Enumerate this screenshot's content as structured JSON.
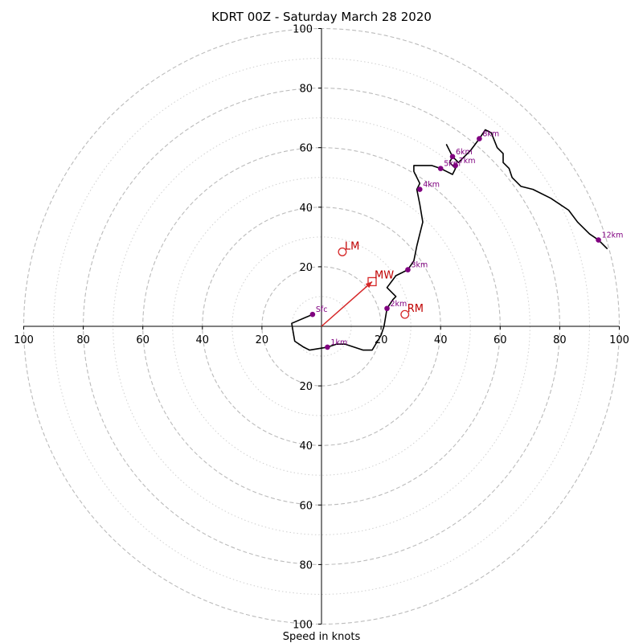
{
  "chart_data": {
    "type": "hodograph",
    "title": "KDRT 00Z - Saturday March 28 2020",
    "xlabel": "Speed in knots",
    "ylabel": "",
    "range": [
      -100,
      100
    ],
    "rings_major": [
      20,
      40,
      60,
      80,
      100
    ],
    "rings_minor": [
      10,
      30,
      50,
      70,
      90
    ],
    "x_tick_labels": [
      "100",
      "80",
      "60",
      "40",
      "20",
      "20",
      "40",
      "60",
      "80",
      "100"
    ],
    "x_tick_values": [
      -100,
      -80,
      -60,
      -40,
      -20,
      20,
      40,
      60,
      80,
      100
    ],
    "y_tick_labels_top": [
      "20",
      "40",
      "60",
      "80",
      "100"
    ],
    "y_tick_values_top": [
      20,
      40,
      60,
      80,
      100
    ],
    "y_tick_labels_bottom": [
      "20",
      "40",
      "60",
      "80",
      "100"
    ],
    "y_tick_values_bottom": [
      -20,
      -40,
      -60,
      -80,
      -100
    ],
    "grid": true,
    "profile_color": "#000000",
    "marker_color": "#800080",
    "accent_color": "#d62728",
    "ring_color": "#bbbbbb",
    "profile": [
      [
        -3,
        4
      ],
      [
        -10,
        1
      ],
      [
        -9,
        -5
      ],
      [
        -6,
        -7
      ],
      [
        -4,
        -8
      ],
      [
        2,
        -7
      ],
      [
        5,
        -6
      ],
      [
        8,
        -6
      ],
      [
        14,
        -8
      ],
      [
        17,
        -8
      ],
      [
        20,
        -3
      ],
      [
        21,
        0
      ],
      [
        22,
        6
      ],
      [
        24,
        9
      ],
      [
        25,
        10
      ],
      [
        22,
        13
      ],
      [
        25,
        17
      ],
      [
        29,
        19
      ],
      [
        31,
        22
      ],
      [
        32,
        27
      ],
      [
        33,
        31
      ],
      [
        34,
        35
      ],
      [
        33,
        41
      ],
      [
        32,
        46
      ],
      [
        33,
        48
      ],
      [
        31,
        52
      ],
      [
        31,
        54
      ],
      [
        34,
        54
      ],
      [
        37,
        54
      ],
      [
        40,
        53
      ],
      [
        42,
        52
      ],
      [
        44,
        51
      ],
      [
        45,
        53
      ],
      [
        43,
        55
      ],
      [
        44,
        57
      ],
      [
        42,
        61
      ],
      [
        44,
        57
      ],
      [
        46,
        55
      ],
      [
        48,
        57
      ],
      [
        50,
        59
      ],
      [
        53,
        63
      ],
      [
        55,
        66
      ],
      [
        57,
        65
      ],
      [
        59,
        60
      ],
      [
        61,
        58
      ],
      [
        61,
        55
      ],
      [
        63,
        53
      ],
      [
        64,
        50
      ],
      [
        67,
        47
      ],
      [
        71,
        46
      ],
      [
        77,
        43
      ],
      [
        83,
        39
      ],
      [
        86,
        35
      ],
      [
        90,
        31
      ],
      [
        93,
        29
      ],
      [
        96,
        26
      ]
    ],
    "height_points": [
      {
        "label": "Sfc",
        "x": -3,
        "y": 4
      },
      {
        "label": "1km",
        "x": 2,
        "y": -7
      },
      {
        "label": "2km",
        "x": 22,
        "y": 6
      },
      {
        "label": "3km",
        "x": 29,
        "y": 19
      },
      {
        "label": "4km",
        "x": 33,
        "y": 46
      },
      {
        "label": "5km",
        "x": 40,
        "y": 53
      },
      {
        "label": "6km",
        "x": 44,
        "y": 57
      },
      {
        "label": "7km",
        "x": 45,
        "y": 54
      },
      {
        "label": "8km",
        "x": 53,
        "y": 63
      },
      {
        "label": "12km",
        "x": 93,
        "y": 29
      }
    ],
    "storm_motion": {
      "mean_wind": {
        "label": "MW",
        "x": 17,
        "y": 15
      },
      "left_mover": {
        "label": "LM",
        "x": 7,
        "y": 25
      },
      "right_mover": {
        "label": "RM",
        "x": 28,
        "y": 4
      }
    }
  }
}
